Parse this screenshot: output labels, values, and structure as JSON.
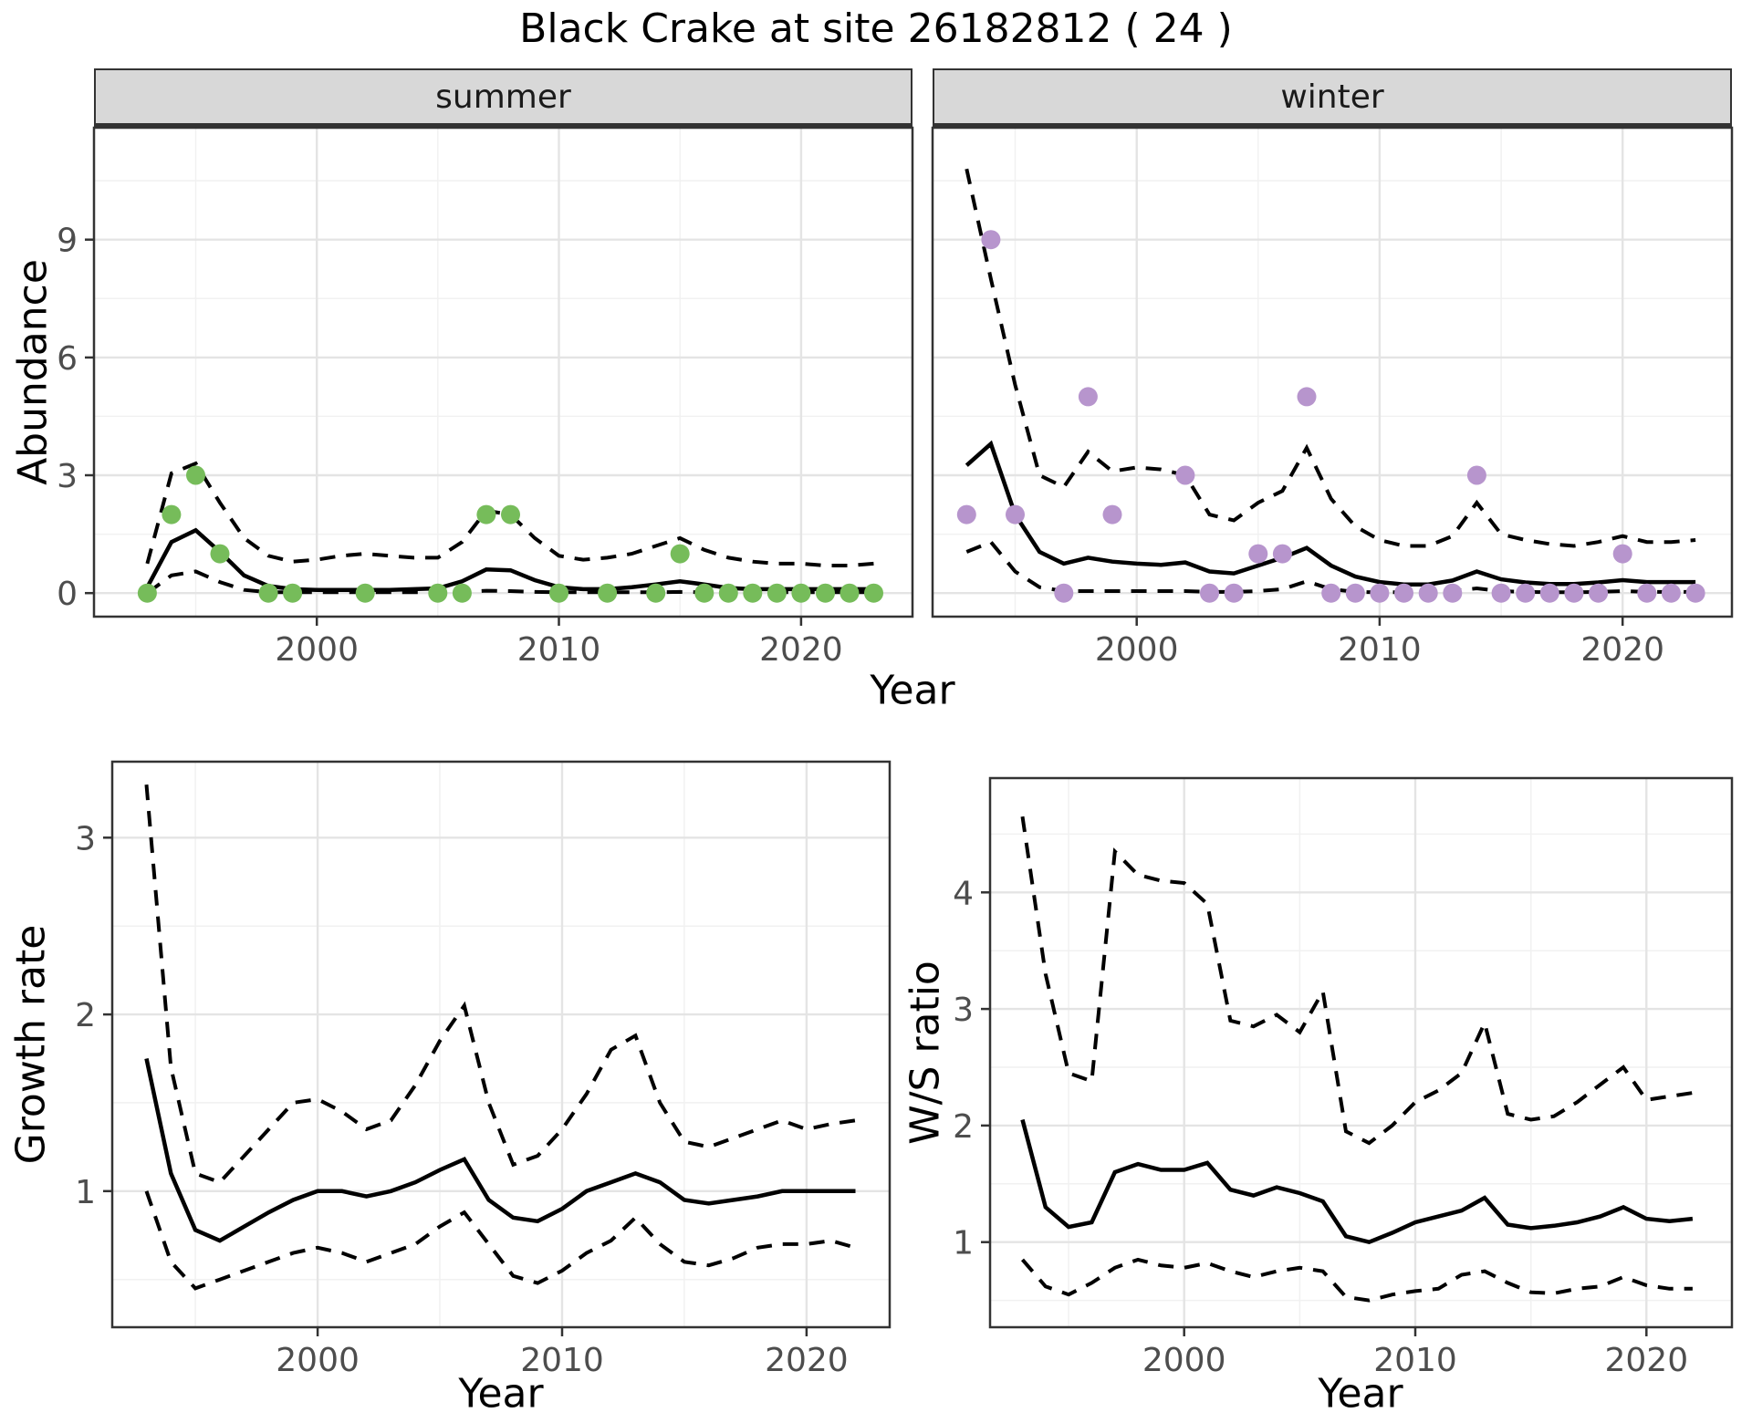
{
  "title": "Black Crake at site 26182812 ( 24 )",
  "labels": {
    "facet_summer": "summer",
    "facet_winter": "winter",
    "abundance_y": "Abundance",
    "year_x_top": "Year",
    "growth_y": "Growth rate",
    "year_x_growth": "Year",
    "ws_y": "W/S ratio",
    "year_x_ws": "Year"
  },
  "colors": {
    "summer_points": "#76bc5a",
    "winter_points": "#b795cd",
    "fit_line": "#000000",
    "ci_line": "#000000",
    "strip_bg": "#d8d8d8",
    "panel_border": "#333333",
    "grid_major": "#e4e4e4",
    "grid_minor": "#f1f1f1",
    "tick_text": "#4d4d4d"
  },
  "chart_data": [
    {
      "id": "abundance-summer",
      "type": "line+scatter",
      "facet_label": "summer",
      "xlabel": "Year",
      "ylabel": "Abundance",
      "xlim": [
        1990.8,
        2024.6
      ],
      "ylim": [
        -0.6,
        11.85
      ],
      "xticks": [
        2000,
        2010,
        2020
      ],
      "yticks": [
        0,
        3,
        6,
        9
      ],
      "xminor": [
        1995,
        2005,
        2015
      ],
      "yminor": [
        1.5,
        4.5,
        7.5,
        10.5
      ],
      "years": [
        1993,
        1994,
        1995,
        1996,
        1997,
        1998,
        1999,
        2000,
        2001,
        2002,
        2003,
        2004,
        2005,
        2006,
        2007,
        2008,
        2009,
        2010,
        2011,
        2012,
        2013,
        2014,
        2015,
        2016,
        2017,
        2018,
        2019,
        2020,
        2021,
        2022,
        2023
      ],
      "fit": [
        0.15,
        1.3,
        1.6,
        1.05,
        0.45,
        0.18,
        0.1,
        0.08,
        0.08,
        0.08,
        0.08,
        0.1,
        0.12,
        0.3,
        0.6,
        0.58,
        0.33,
        0.15,
        0.1,
        0.1,
        0.15,
        0.22,
        0.3,
        0.22,
        0.13,
        0.1,
        0.1,
        0.1,
        0.1,
        0.1,
        0.1
      ],
      "upper_ci": [
        0.75,
        3.05,
        3.3,
        2.3,
        1.4,
        0.95,
        0.8,
        0.85,
        0.95,
        1.0,
        0.95,
        0.9,
        0.9,
        1.3,
        2.1,
        2.0,
        1.4,
        0.95,
        0.85,
        0.9,
        1.0,
        1.2,
        1.4,
        1.1,
        0.9,
        0.8,
        0.75,
        0.75,
        0.7,
        0.7,
        0.75
      ],
      "lower_ci": [
        0.0,
        0.45,
        0.55,
        0.28,
        0.08,
        0.02,
        0.02,
        0.02,
        0.02,
        0.02,
        0.02,
        0.02,
        0.02,
        0.03,
        0.06,
        0.05,
        0.03,
        0.02,
        0.02,
        0.02,
        0.02,
        0.02,
        0.03,
        0.02,
        0.02,
        0.02,
        0.02,
        0.02,
        0.02,
        0.02,
        0.02
      ],
      "observations": {
        "years": [
          1993,
          1994,
          1995,
          1996,
          1998,
          1999,
          2002,
          2005,
          2006,
          2007,
          2008,
          2010,
          2012,
          2014,
          2015,
          2016,
          2017,
          2018,
          2019,
          2020,
          2021,
          2022,
          2023
        ],
        "values": [
          0,
          2,
          3,
          1,
          0,
          0,
          0,
          0,
          0,
          2,
          2,
          0,
          0,
          0,
          1,
          0,
          0,
          0,
          0,
          0,
          0,
          0,
          0
        ]
      },
      "point_color": "#76bc5a"
    },
    {
      "id": "abundance-winter",
      "type": "line+scatter",
      "facet_label": "winter",
      "xlabel": "Year",
      "ylabel": "Abundance",
      "xlim": [
        1991.6,
        2024.5
      ],
      "ylim": [
        -0.6,
        11.85
      ],
      "xticks": [
        2000,
        2010,
        2020
      ],
      "yticks": [
        0,
        3,
        6,
        9
      ],
      "xminor": [
        1995,
        2005,
        2015
      ],
      "yminor": [
        1.5,
        4.5,
        7.5,
        10.5
      ],
      "years": [
        1993,
        1994,
        1995,
        1996,
        1997,
        1998,
        1999,
        2000,
        2001,
        2002,
        2003,
        2004,
        2005,
        2006,
        2007,
        2008,
        2009,
        2010,
        2011,
        2012,
        2013,
        2014,
        2015,
        2016,
        2017,
        2018,
        2019,
        2020,
        2021,
        2022,
        2023
      ],
      "fit": [
        3.25,
        3.8,
        2.0,
        1.05,
        0.75,
        0.9,
        0.8,
        0.75,
        0.72,
        0.78,
        0.55,
        0.5,
        0.7,
        0.9,
        1.15,
        0.7,
        0.42,
        0.28,
        0.22,
        0.22,
        0.32,
        0.55,
        0.35,
        0.27,
        0.23,
        0.23,
        0.27,
        0.33,
        0.28,
        0.28,
        0.28
      ],
      "upper_ci": [
        10.8,
        8.0,
        5.3,
        3.0,
        2.7,
        3.6,
        3.1,
        3.2,
        3.15,
        3.0,
        2.0,
        1.85,
        2.3,
        2.6,
        3.7,
        2.4,
        1.7,
        1.35,
        1.2,
        1.2,
        1.45,
        2.3,
        1.5,
        1.35,
        1.25,
        1.2,
        1.3,
        1.45,
        1.3,
        1.3,
        1.35
      ],
      "lower_ci": [
        1.05,
        1.3,
        0.55,
        0.15,
        0.05,
        0.05,
        0.05,
        0.05,
        0.05,
        0.05,
        0.03,
        0.03,
        0.05,
        0.1,
        0.3,
        0.1,
        0.03,
        0.02,
        0.02,
        0.02,
        0.05,
        0.12,
        0.05,
        0.03,
        0.02,
        0.02,
        0.03,
        0.05,
        0.03,
        0.03,
        0.03
      ],
      "observations": {
        "years": [
          1993,
          1994,
          1995,
          1997,
          1998,
          1999,
          2002,
          2003,
          2004,
          2005,
          2006,
          2007,
          2008,
          2009,
          2010,
          2011,
          2012,
          2013,
          2014,
          2015,
          2016,
          2017,
          2018,
          2019,
          2020,
          2021,
          2022,
          2023
        ],
        "values": [
          2,
          9,
          2,
          0,
          5,
          2,
          3,
          0,
          0,
          1,
          1,
          5,
          0,
          0,
          0,
          0,
          0,
          0,
          3,
          0,
          0,
          0,
          0,
          0,
          1,
          0,
          0,
          0
        ]
      },
      "point_color": "#b795cd"
    },
    {
      "id": "growth-rate",
      "type": "line",
      "xlabel": "Year",
      "ylabel": "Growth rate",
      "xlim": [
        1991.6,
        2023.4
      ],
      "ylim": [
        0.23,
        3.43
      ],
      "xticks": [
        2000,
        2010,
        2020
      ],
      "yticks": [
        1,
        2,
        3
      ],
      "xminor": [
        1995,
        2005,
        2015
      ],
      "yminor": [
        0.5,
        1.5,
        2.5
      ],
      "years": [
        1993,
        1994,
        1995,
        1996,
        1997,
        1998,
        1999,
        2000,
        2001,
        2002,
        2003,
        2004,
        2005,
        2006,
        2007,
        2008,
        2009,
        2010,
        2011,
        2012,
        2013,
        2014,
        2015,
        2016,
        2017,
        2018,
        2019,
        2020,
        2021,
        2022
      ],
      "fit": [
        1.75,
        1.1,
        0.78,
        0.72,
        0.8,
        0.88,
        0.95,
        1.0,
        1.0,
        0.97,
        1.0,
        1.05,
        1.12,
        1.18,
        0.95,
        0.85,
        0.83,
        0.9,
        1.0,
        1.05,
        1.1,
        1.05,
        0.95,
        0.93,
        0.95,
        0.97,
        1.0,
        1.0,
        1.0,
        1.0
      ],
      "upper_ci": [
        3.3,
        1.7,
        1.1,
        1.05,
        1.2,
        1.35,
        1.5,
        1.52,
        1.45,
        1.35,
        1.4,
        1.6,
        1.85,
        2.05,
        1.5,
        1.15,
        1.2,
        1.35,
        1.55,
        1.8,
        1.88,
        1.5,
        1.28,
        1.25,
        1.3,
        1.35,
        1.4,
        1.35,
        1.38,
        1.4
      ],
      "lower_ci": [
        1.0,
        0.6,
        0.45,
        0.5,
        0.55,
        0.6,
        0.65,
        0.68,
        0.65,
        0.6,
        0.65,
        0.7,
        0.8,
        0.88,
        0.7,
        0.52,
        0.48,
        0.55,
        0.65,
        0.72,
        0.85,
        0.7,
        0.6,
        0.58,
        0.62,
        0.68,
        0.7,
        0.7,
        0.72,
        0.68
      ]
    },
    {
      "id": "ws-ratio",
      "type": "line",
      "xlabel": "Year",
      "ylabel": "W/S ratio",
      "xlim": [
        1991.6,
        2023.7
      ],
      "ylim": [
        0.27,
        4.98
      ],
      "xticks": [
        2000,
        2010,
        2020
      ],
      "yticks": [
        1,
        2,
        3,
        4
      ],
      "xminor": [
        1995,
        2005,
        2015
      ],
      "yminor": [
        0.5,
        1.5,
        2.5,
        3.5,
        4.5
      ],
      "years": [
        1993,
        1994,
        1995,
        1996,
        1997,
        1998,
        1999,
        2000,
        2001,
        2002,
        2003,
        2004,
        2005,
        2006,
        2007,
        2008,
        2009,
        2010,
        2011,
        2012,
        2013,
        2014,
        2015,
        2016,
        2017,
        2018,
        2019,
        2020,
        2021,
        2022
      ],
      "fit": [
        2.05,
        1.3,
        1.13,
        1.17,
        1.6,
        1.67,
        1.62,
        1.62,
        1.68,
        1.45,
        1.4,
        1.47,
        1.42,
        1.35,
        1.05,
        1.0,
        1.08,
        1.17,
        1.22,
        1.27,
        1.38,
        1.15,
        1.12,
        1.14,
        1.17,
        1.22,
        1.3,
        1.2,
        1.18,
        1.2
      ],
      "upper_ci": [
        4.65,
        3.3,
        2.45,
        2.38,
        4.35,
        4.15,
        4.1,
        4.08,
        3.9,
        2.9,
        2.85,
        2.95,
        2.8,
        3.15,
        1.95,
        1.85,
        2.0,
        2.2,
        2.3,
        2.45,
        2.88,
        2.1,
        2.05,
        2.08,
        2.2,
        2.35,
        2.5,
        2.22,
        2.25,
        2.28
      ],
      "lower_ci": [
        0.85,
        0.62,
        0.55,
        0.65,
        0.78,
        0.85,
        0.8,
        0.78,
        0.82,
        0.75,
        0.7,
        0.75,
        0.78,
        0.75,
        0.53,
        0.5,
        0.55,
        0.58,
        0.6,
        0.72,
        0.75,
        0.65,
        0.57,
        0.56,
        0.6,
        0.62,
        0.7,
        0.63,
        0.6,
        0.6
      ]
    }
  ]
}
